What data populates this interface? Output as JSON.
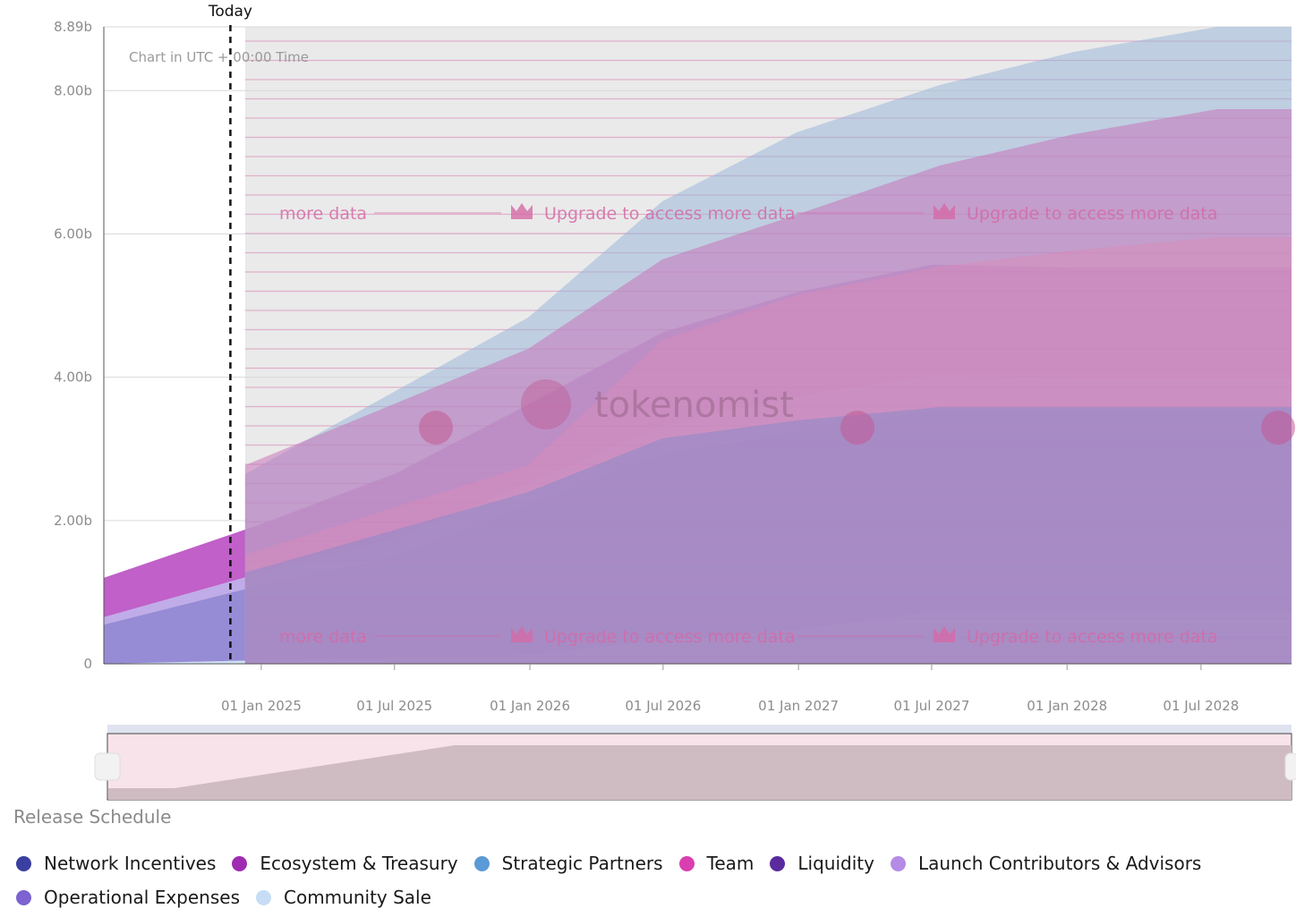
{
  "chart_data": {
    "type": "area",
    "stacked": true,
    "title": "",
    "xlabel": "",
    "ylabel": "",
    "note": "Chart in UTC + 00:00 Time",
    "today_label": "Today",
    "today_date": "2024-11-20",
    "y_ticks": [
      {
        "value": 0,
        "label": "0"
      },
      {
        "value": 2.0,
        "label": "2.00b"
      },
      {
        "value": 4.0,
        "label": "4.00b"
      },
      {
        "value": 6.0,
        "label": "6.00b"
      },
      {
        "value": 8.0,
        "label": "8.00b"
      },
      {
        "value": 8.89,
        "label": "8.89b"
      }
    ],
    "ylim": [
      0,
      8.89
    ],
    "x_ticks": [
      "2025-01-01",
      "2025-07-01",
      "2026-01-01",
      "2026-07-01",
      "2027-01-01",
      "2027-07-01",
      "2028-01-01",
      "2028-07-01"
    ],
    "x_tick_labels": [
      "01 Jan 2025",
      "01 Jul 2025",
      "01 Jan 2026",
      "01 Jul 2026",
      "01 Jan 2027",
      "01 Jul 2027",
      "01 Jan 2028",
      "01 Jul 2028"
    ],
    "xlim": [
      "2024-06-01",
      "2028-11-01"
    ],
    "x": [
      "2024-06-01",
      "2025-01-01",
      "2025-07-01",
      "2026-01-01",
      "2026-07-01",
      "2027-01-01",
      "2027-07-01",
      "2028-01-01",
      "2028-07-01",
      "2028-11-01"
    ],
    "series": [
      {
        "name": "Community Sale",
        "color": "#c9dcf2",
        "values": [
          0.0,
          0.05,
          0.1,
          0.13,
          0.33,
          0.48,
          0.73,
          0.73,
          0.73,
          0.73
        ]
      },
      {
        "name": "Operational Expenses",
        "color": "#8b7fd0",
        "values": [
          0.55,
          1.05,
          1.4,
          2.1,
          2.6,
          2.76,
          2.81,
          2.8,
          2.8,
          2.8
        ]
      },
      {
        "name": "Launch Contributors & Advisors",
        "color": "#b9a3e6",
        "values": [
          0.1,
          0.17,
          0.25,
          0.3,
          0.4,
          0.5,
          0.48,
          0.45,
          0.45,
          0.45
        ]
      },
      {
        "name": "Liquidity",
        "color": "#6a3fb0",
        "values": [
          0.0,
          0.0,
          0.0,
          0.0,
          0.0,
          0.0,
          0.0,
          0.0,
          0.0,
          0.0
        ]
      },
      {
        "name": "Team",
        "color": "#d760b8",
        "values": [
          0.0,
          0.0,
          0.0,
          0.0,
          0.0,
          0.0,
          0.0,
          0.0,
          0.0,
          0.0
        ]
      },
      {
        "name": "Network Incentives",
        "color": "#5a5fb8",
        "values": [
          0.0,
          0.0,
          0.0,
          0.0,
          0.0,
          0.0,
          0.0,
          0.0,
          0.0,
          0.0
        ]
      },
      {
        "name": "Strategic Partners",
        "color": "#9dbfe0",
        "values": [
          0.0,
          0.0,
          0.0,
          0.0,
          0.0,
          0.0,
          0.0,
          0.0,
          0.0,
          0.0
        ]
      },
      {
        "name": "Ecosystem & Treasury",
        "color": "#b94fc2",
        "values": [
          0.55,
          0.68,
          0.9,
          1.1,
          1.3,
          1.45,
          1.55,
          1.55,
          1.55,
          1.55
        ]
      }
    ],
    "locked_overlay": {
      "start": "2024-12-10",
      "labels": [
        "more data",
        "Upgrade to access more data",
        "Upgrade to access more data"
      ],
      "watermark": "tokenomist"
    },
    "grid": true,
    "legend_position": "bottom",
    "legend_title": "Release Schedule"
  },
  "legend": {
    "title": "Release Schedule",
    "items": [
      {
        "label": "Network Incentives",
        "color": "#3a3fa0"
      },
      {
        "label": "Ecosystem & Treasury",
        "color": "#a02bb3"
      },
      {
        "label": "Strategic Partners",
        "color": "#5a9ad6"
      },
      {
        "label": "Team",
        "color": "#d93fb0"
      },
      {
        "label": "Liquidity",
        "color": "#5b2a9e"
      },
      {
        "label": "Launch Contributors & Advisors",
        "color": "#b58be6"
      },
      {
        "label": "Operational Expenses",
        "color": "#7c63cf"
      },
      {
        "label": "Community Sale",
        "color": "#c6ddf5"
      }
    ]
  }
}
